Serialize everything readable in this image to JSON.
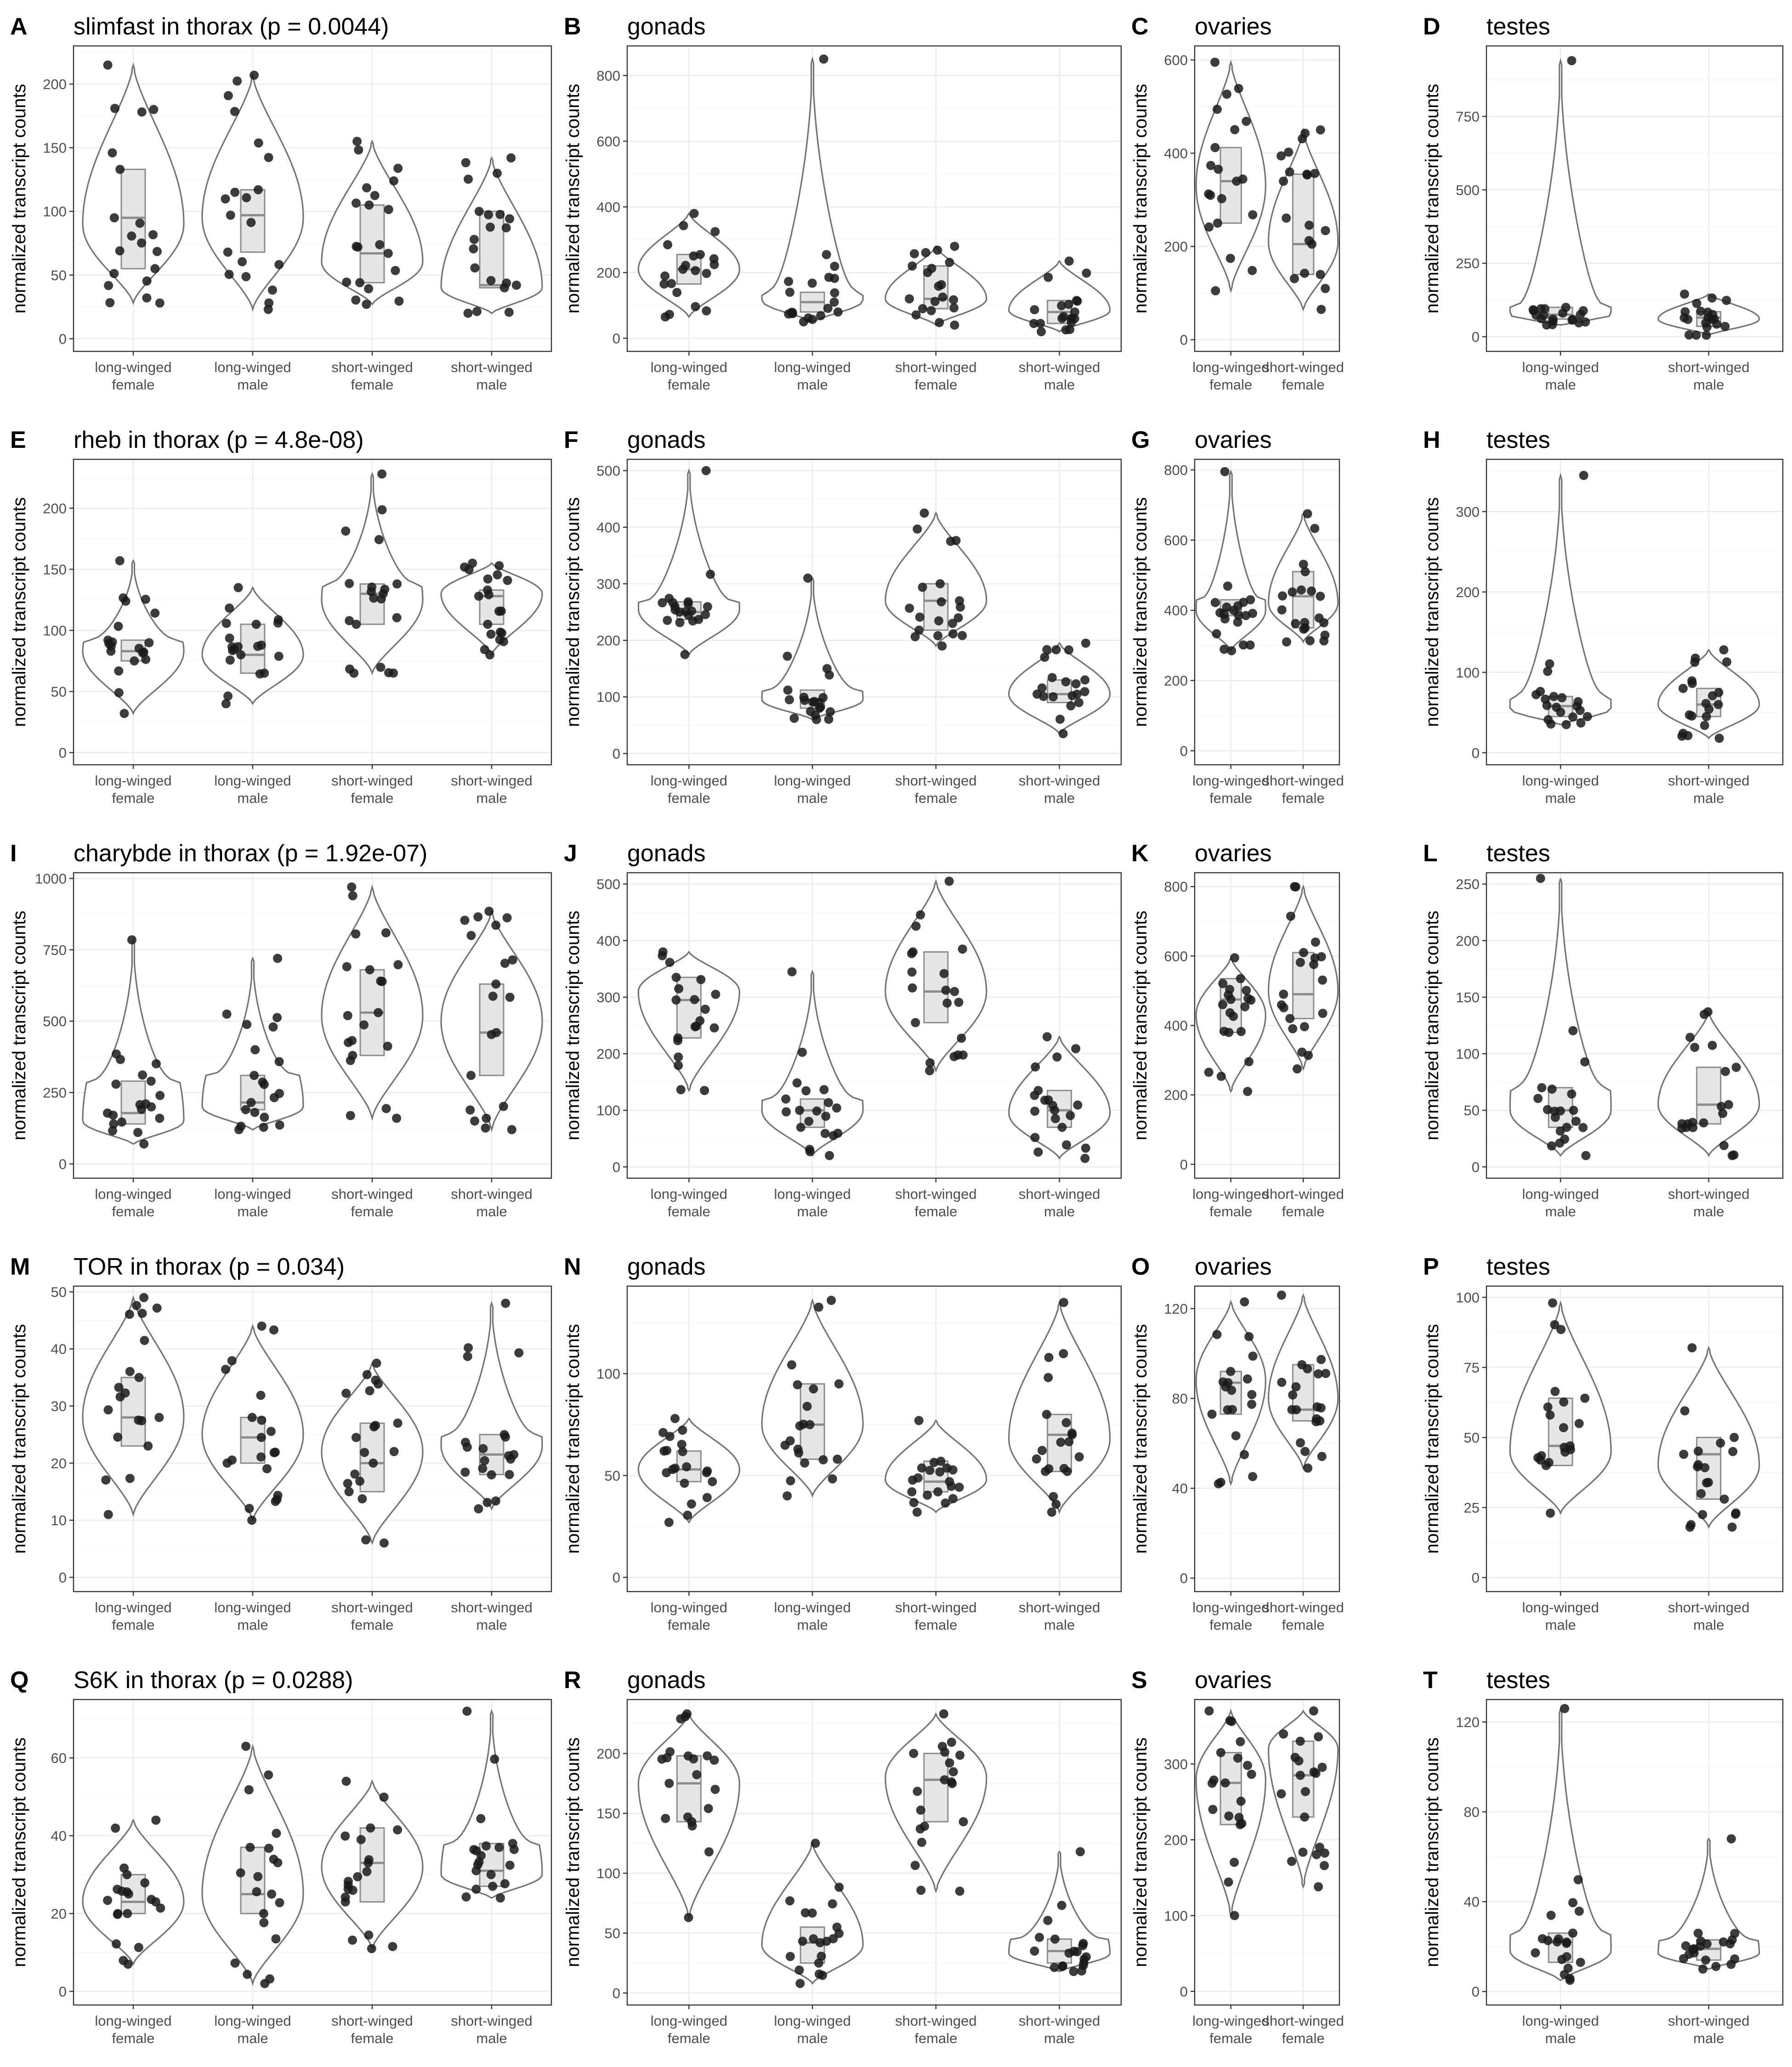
{
  "figure": {
    "ylabel": "normalized transcript counts",
    "colors": {
      "violin_outline": "#737373",
      "box_fill": "#e6e6e6",
      "points": "#1a1a1a",
      "grid": "#ebebeb",
      "panel_border": "#333333"
    }
  },
  "chart_data": [
    {
      "letter": "A",
      "title": "slimfast in thorax (p = 0.0044)",
      "type": "violin",
      "ylabel": "normalized transcript counts",
      "ylim": [
        -10,
        230
      ],
      "yticks": [
        0,
        50,
        100,
        150,
        200
      ],
      "grid": true,
      "categories": [
        "long-winged female",
        "long-winged male",
        "short-winged female",
        "short-winged male"
      ],
      "groups": [
        {
          "min": 28,
          "q1": 55,
          "median": 95,
          "q3": 133,
          "max": 215,
          "mode": 90
        },
        {
          "min": 23,
          "q1": 68,
          "median": 97,
          "q3": 117,
          "max": 207,
          "mode": 95
        },
        {
          "min": 27,
          "q1": 44,
          "median": 67,
          "q3": 105,
          "max": 155,
          "mode": 60
        },
        {
          "min": 20,
          "q1": 40,
          "median": 42,
          "q3": 100,
          "max": 142,
          "mode": 40
        }
      ]
    },
    {
      "letter": "B",
      "title": "gonads",
      "type": "violin",
      "ylabel": "normalized transcript counts",
      "ylim": [
        -40,
        890
      ],
      "yticks": [
        0,
        200,
        400,
        600,
        800
      ],
      "grid": true,
      "categories": [
        "long-winged female",
        "long-winged male",
        "short-winged female",
        "short-winged male"
      ],
      "groups": [
        {
          "min": 65,
          "q1": 165,
          "median": 210,
          "q3": 255,
          "max": 380,
          "mode": 210
        },
        {
          "min": 50,
          "q1": 80,
          "median": 110,
          "q3": 140,
          "max": 850,
          "mode": 115
        },
        {
          "min": 40,
          "q1": 90,
          "median": 120,
          "q3": 220,
          "max": 280,
          "mode": 120
        },
        {
          "min": 20,
          "q1": 45,
          "median": 80,
          "q3": 115,
          "max": 235,
          "mode": 85
        }
      ]
    },
    {
      "letter": "C",
      "title": "ovaries",
      "type": "violin",
      "ylabel": "normalized transcript counts",
      "ylim": [
        -25,
        630
      ],
      "yticks": [
        0,
        200,
        400,
        600
      ],
      "grid": true,
      "categories": [
        "long-winged female",
        "short-winged female"
      ],
      "groups": [
        {
          "min": 105,
          "q1": 250,
          "median": 340,
          "q3": 412,
          "max": 595,
          "mode": 330
        },
        {
          "min": 65,
          "q1": 140,
          "median": 205,
          "q3": 355,
          "max": 450,
          "mode": 210
        }
      ]
    },
    {
      "letter": "D",
      "title": "testes",
      "type": "violin",
      "ylabel": "normalized transcript counts",
      "ylim": [
        -50,
        990
      ],
      "yticks": [
        0,
        250,
        500,
        750
      ],
      "grid": true,
      "categories": [
        "long-winged male",
        "short-winged male"
      ],
      "groups": [
        {
          "min": 40,
          "q1": 60,
          "median": 75,
          "q3": 100,
          "max": 940,
          "mode": 75
        },
        {
          "min": 5,
          "q1": 35,
          "median": 65,
          "q3": 85,
          "max": 145,
          "mode": 60
        }
      ]
    },
    {
      "letter": "E",
      "title": "rheb in thorax (p = 4.8e-08)",
      "type": "violin",
      "ylabel": "normalized transcript counts",
      "ylim": [
        -10,
        240
      ],
      "yticks": [
        0,
        50,
        100,
        150,
        200
      ],
      "grid": true,
      "categories": [
        "long-winged female",
        "long-winged male",
        "short-winged female",
        "short-winged male"
      ],
      "groups": [
        {
          "min": 32,
          "q1": 75,
          "median": 83,
          "q3": 92,
          "max": 157,
          "mode": 83
        },
        {
          "min": 40,
          "q1": 65,
          "median": 80,
          "q3": 105,
          "max": 135,
          "mode": 80
        },
        {
          "min": 65,
          "q1": 105,
          "median": 130,
          "q3": 138,
          "max": 228,
          "mode": 125
        },
        {
          "min": 80,
          "q1": 105,
          "median": 128,
          "q3": 133,
          "max": 155,
          "mode": 130
        }
      ]
    },
    {
      "letter": "F",
      "title": "gonads",
      "type": "violin",
      "ylabel": "normalized transcript counts",
      "ylim": [
        -20,
        520
      ],
      "yticks": [
        0,
        100,
        200,
        300,
        400,
        500
      ],
      "grid": true,
      "categories": [
        "long-winged female",
        "long-winged male",
        "short-winged female",
        "short-winged male"
      ],
      "groups": [
        {
          "min": 175,
          "q1": 237,
          "median": 250,
          "q3": 268,
          "max": 500,
          "mode": 255
        },
        {
          "min": 60,
          "q1": 80,
          "median": 95,
          "q3": 112,
          "max": 310,
          "mode": 95
        },
        {
          "min": 190,
          "q1": 218,
          "median": 270,
          "q3": 300,
          "max": 425,
          "mode": 270
        },
        {
          "min": 35,
          "q1": 90,
          "median": 105,
          "q3": 130,
          "max": 195,
          "mode": 105
        }
      ]
    },
    {
      "letter": "G",
      "title": "ovaries",
      "type": "violin",
      "ylabel": "normalized transcript counts",
      "ylim": [
        -40,
        830
      ],
      "yticks": [
        0,
        200,
        400,
        600,
        800
      ],
      "grid": true,
      "categories": [
        "long-winged female",
        "short-winged female"
      ],
      "groups": [
        {
          "min": 285,
          "q1": 385,
          "median": 400,
          "q3": 430,
          "max": 795,
          "mode": 400
        },
        {
          "min": 310,
          "q1": 350,
          "median": 440,
          "q3": 510,
          "max": 675,
          "mode": 420
        }
      ]
    },
    {
      "letter": "H",
      "title": "testes",
      "type": "violin",
      "ylabel": "normalized transcript counts",
      "ylim": [
        -15,
        365
      ],
      "yticks": [
        0,
        100,
        200,
        300
      ],
      "grid": true,
      "categories": [
        "long-winged male",
        "short-winged male"
      ],
      "groups": [
        {
          "min": 35,
          "q1": 45,
          "median": 58,
          "q3": 70,
          "max": 345,
          "mode": 55
        },
        {
          "min": 18,
          "q1": 45,
          "median": 60,
          "q3": 80,
          "max": 128,
          "mode": 60
        }
      ]
    },
    {
      "letter": "I",
      "title": "charybde in thorax (p = 1.92e-07)",
      "type": "violin",
      "ylabel": "normalized transcript counts",
      "ylim": [
        -50,
        1020
      ],
      "yticks": [
        0,
        250,
        500,
        750,
        1000
      ],
      "grid": true,
      "categories": [
        "long-winged female",
        "long-winged male",
        "short-winged female",
        "short-winged male"
      ],
      "groups": [
        {
          "min": 70,
          "q1": 140,
          "median": 178,
          "q3": 290,
          "max": 785,
          "mode": 150
        },
        {
          "min": 120,
          "q1": 190,
          "median": 215,
          "q3": 310,
          "max": 720,
          "mode": 200
        },
        {
          "min": 160,
          "q1": 380,
          "median": 530,
          "q3": 680,
          "max": 970,
          "mode": 520
        },
        {
          "min": 120,
          "q1": 310,
          "median": 460,
          "q3": 630,
          "max": 885,
          "mode": 500
        }
      ]
    },
    {
      "letter": "J",
      "title": "gonads",
      "type": "violin",
      "ylabel": "normalized transcript counts",
      "ylim": [
        -20,
        520
      ],
      "yticks": [
        0,
        100,
        200,
        300,
        400,
        500
      ],
      "grid": true,
      "categories": [
        "long-winged female",
        "long-winged male",
        "short-winged female",
        "short-winged male"
      ],
      "groups": [
        {
          "min": 135,
          "q1": 228,
          "median": 295,
          "q3": 335,
          "max": 380,
          "mode": 310
        },
        {
          "min": 20,
          "q1": 70,
          "median": 100,
          "q3": 120,
          "max": 345,
          "mode": 100
        },
        {
          "min": 170,
          "q1": 255,
          "median": 310,
          "q3": 380,
          "max": 505,
          "mode": 310
        },
        {
          "min": 15,
          "q1": 70,
          "median": 100,
          "q3": 135,
          "max": 230,
          "mode": 95
        }
      ]
    },
    {
      "letter": "K",
      "title": "ovaries",
      "type": "violin",
      "ylabel": "normalized transcript counts",
      "ylim": [
        -40,
        840
      ],
      "yticks": [
        0,
        200,
        400,
        600,
        800
      ],
      "grid": true,
      "categories": [
        "long-winged female",
        "short-winged female"
      ],
      "groups": [
        {
          "min": 210,
          "q1": 380,
          "median": 475,
          "q3": 535,
          "max": 595,
          "mode": 430
        },
        {
          "min": 275,
          "q1": 420,
          "median": 490,
          "q3": 610,
          "max": 800,
          "mode": 500
        }
      ]
    },
    {
      "letter": "L",
      "title": "testes",
      "type": "violin",
      "ylabel": "normalized transcript counts",
      "ylim": [
        -10,
        260
      ],
      "yticks": [
        0,
        50,
        100,
        150,
        200,
        250
      ],
      "grid": true,
      "categories": [
        "long-winged male",
        "short-winged male"
      ],
      "groups": [
        {
          "min": 10,
          "q1": 35,
          "median": 50,
          "q3": 70,
          "max": 255,
          "mode": 50
        },
        {
          "min": 10,
          "q1": 38,
          "median": 55,
          "q3": 88,
          "max": 137,
          "mode": 55
        }
      ]
    },
    {
      "letter": "M",
      "title": "TOR in thorax (p = 0.034)",
      "type": "violin",
      "ylabel": "normalized transcript counts",
      "ylim": [
        -2.5,
        51
      ],
      "yticks": [
        0,
        10,
        20,
        30,
        40,
        50
      ],
      "grid": true,
      "categories": [
        "long-winged female",
        "long-winged male",
        "short-winged female",
        "short-winged male"
      ],
      "groups": [
        {
          "min": 11,
          "q1": 23,
          "median": 28,
          "q3": 35,
          "max": 49,
          "mode": 28
        },
        {
          "min": 10,
          "q1": 20,
          "median": 24.5,
          "q3": 28,
          "max": 44,
          "mode": 25
        },
        {
          "min": 6,
          "q1": 15,
          "median": 20,
          "q3": 27,
          "max": 37.5,
          "mode": 22
        },
        {
          "min": 12,
          "q1": 18,
          "median": 21.5,
          "q3": 25,
          "max": 48,
          "mode": 23
        }
      ]
    },
    {
      "letter": "N",
      "title": "gonads",
      "type": "violin",
      "ylabel": "normalized transcript counts",
      "ylim": [
        -7,
        143
      ],
      "yticks": [
        0,
        50,
        100
      ],
      "grid": true,
      "categories": [
        "long-winged female",
        "long-winged male",
        "short-winged female",
        "short-winged male"
      ],
      "groups": [
        {
          "min": 27,
          "q1": 47,
          "median": 53,
          "q3": 62,
          "max": 78,
          "mode": 53
        },
        {
          "min": 40,
          "q1": 58,
          "median": 75,
          "q3": 95,
          "max": 136,
          "mode": 75
        },
        {
          "min": 32,
          "q1": 42,
          "median": 47,
          "q3": 57,
          "max": 77,
          "mode": 48
        },
        {
          "min": 32,
          "q1": 52,
          "median": 70,
          "q3": 80,
          "max": 135,
          "mode": 68
        }
      ]
    },
    {
      "letter": "O",
      "title": "ovaries",
      "type": "violin",
      "ylabel": "normalized transcript counts",
      "ylim": [
        -6,
        130
      ],
      "yticks": [
        0,
        40,
        80,
        120
      ],
      "grid": true,
      "categories": [
        "long-winged female",
        "short-winged female"
      ],
      "groups": [
        {
          "min": 42,
          "q1": 73,
          "median": 87,
          "q3": 92,
          "max": 123,
          "mode": 88
        },
        {
          "min": 49,
          "q1": 70,
          "median": 75,
          "q3": 95,
          "max": 126,
          "mode": 80
        }
      ]
    },
    {
      "letter": "P",
      "title": "testes",
      "type": "violin",
      "ylabel": "normalized transcript counts",
      "ylim": [
        -5,
        104
      ],
      "yticks": [
        0,
        25,
        50,
        75,
        100
      ],
      "grid": true,
      "categories": [
        "long-winged male",
        "short-winged male"
      ],
      "groups": [
        {
          "min": 23,
          "q1": 40,
          "median": 47,
          "q3": 64,
          "max": 98,
          "mode": 45
        },
        {
          "min": 18,
          "q1": 28,
          "median": 44,
          "q3": 50,
          "max": 82,
          "mode": 40
        }
      ]
    },
    {
      "letter": "Q",
      "title": "S6K in thorax (p = 0.0288)",
      "type": "violin",
      "ylabel": "normalized transcript counts",
      "ylim": [
        -3.5,
        75
      ],
      "yticks": [
        0,
        20,
        40,
        60
      ],
      "grid": true,
      "categories": [
        "long-winged female",
        "long-winged male",
        "short-winged female",
        "short-winged male"
      ],
      "groups": [
        {
          "min": 7,
          "q1": 20,
          "median": 23,
          "q3": 30,
          "max": 44,
          "mode": 23
        },
        {
          "min": 2,
          "q1": 20,
          "median": 25,
          "q3": 37,
          "max": 63,
          "mode": 25
        },
        {
          "min": 11,
          "q1": 23,
          "median": 33,
          "q3": 42,
          "max": 54,
          "mode": 32
        },
        {
          "min": 24,
          "q1": 27,
          "median": 31,
          "q3": 38,
          "max": 72,
          "mode": 30
        }
      ]
    },
    {
      "letter": "R",
      "title": "gonads",
      "type": "violin",
      "ylabel": "normalized transcript counts",
      "ylim": [
        -10,
        245
      ],
      "yticks": [
        0,
        50,
        100,
        150,
        200
      ],
      "grid": true,
      "categories": [
        "long-winged female",
        "long-winged male",
        "short-winged female",
        "short-winged male"
      ],
      "groups": [
        {
          "min": 63,
          "q1": 143,
          "median": 175,
          "q3": 198,
          "max": 233,
          "mode": 175
        },
        {
          "min": 8,
          "q1": 25,
          "median": 42,
          "q3": 55,
          "max": 125,
          "mode": 40
        },
        {
          "min": 85,
          "q1": 143,
          "median": 178,
          "q3": 200,
          "max": 233,
          "mode": 180
        },
        {
          "min": 18,
          "q1": 25,
          "median": 35,
          "q3": 45,
          "max": 118,
          "mode": 33
        }
      ]
    },
    {
      "letter": "S",
      "title": "ovaries",
      "type": "violin",
      "ylabel": "normalized transcript counts",
      "ylim": [
        -18,
        385
      ],
      "yticks": [
        0,
        100,
        200,
        300
      ],
      "grid": true,
      "categories": [
        "long-winged female",
        "short-winged female"
      ],
      "groups": [
        {
          "min": 100,
          "q1": 220,
          "median": 275,
          "q3": 315,
          "max": 370,
          "mode": 280
        },
        {
          "min": 138,
          "q1": 230,
          "median": 285,
          "q3": 330,
          "max": 370,
          "mode": 320
        }
      ]
    },
    {
      "letter": "T",
      "title": "testes",
      "type": "violin",
      "ylabel": "normalized transcript counts",
      "ylim": [
        -6,
        130
      ],
      "yticks": [
        0,
        40,
        80,
        120
      ],
      "grid": true,
      "categories": [
        "long-winged male",
        "short-winged male"
      ],
      "groups": [
        {
          "min": 5,
          "q1": 13,
          "median": 22,
          "q3": 26,
          "max": 126,
          "mode": 18
        },
        {
          "min": 10,
          "q1": 14,
          "median": 19,
          "q3": 23,
          "max": 68,
          "mode": 17
        }
      ]
    }
  ]
}
